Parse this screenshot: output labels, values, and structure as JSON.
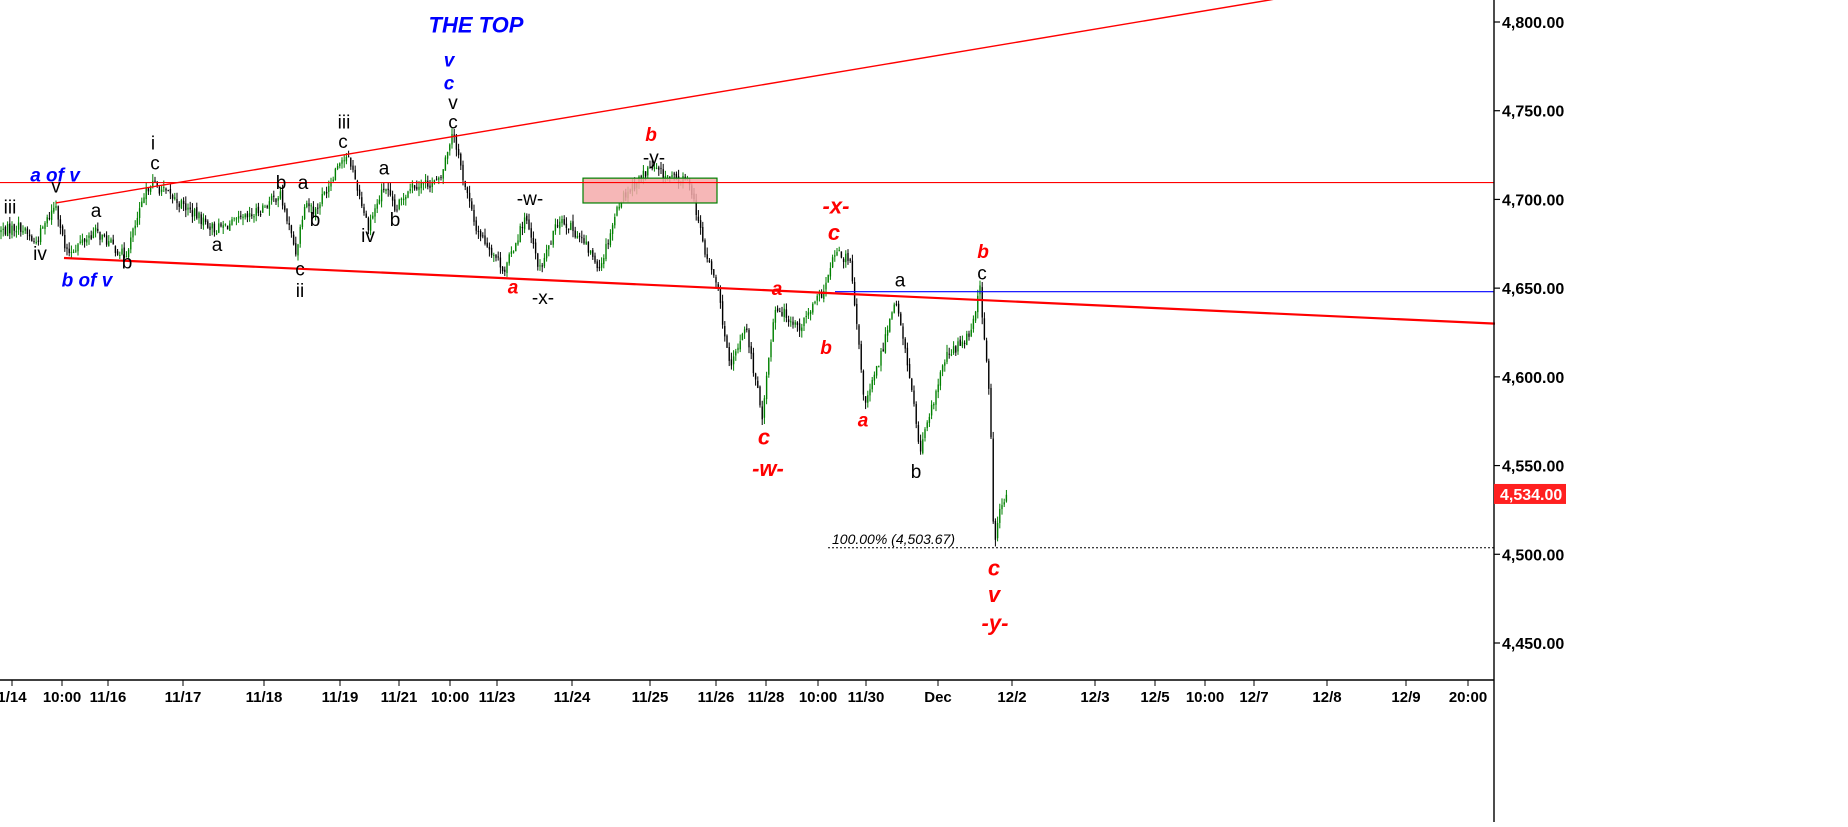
{
  "chart_data": {
    "type": "candlestick",
    "title": "",
    "xlabel": "",
    "ylabel": "",
    "ylim": [
      4430,
      4822
    ],
    "y_ticks": [
      "4,800.00",
      "4,750.00",
      "4,700.00",
      "4,650.00",
      "4,600.00",
      "4,550.00",
      "4,500.00",
      "4,450.00"
    ],
    "y_tick_values": [
      4800,
      4750,
      4700,
      4650,
      4600,
      4550,
      4500,
      4450
    ],
    "x_ticks": [
      "1/14",
      "10:00",
      "11/16",
      "11/17",
      "11/18",
      "11/19",
      "11/21",
      "10:00",
      "11/23",
      "11/24",
      "11/25",
      "11/26",
      "11/28",
      "10:00",
      "11/30",
      "Dec",
      "12/2",
      "12/3",
      "12/5",
      "10:00",
      "12/7",
      "12/8",
      "12/9",
      "20:00"
    ],
    "last_price_label": "4,534.00",
    "last_price": 4534,
    "colors": {
      "up": "#008000",
      "down": "#000000",
      "trend": "#ff0000",
      "blue_line": "#0000ff",
      "box_fill": "#f4aaaa",
      "box_border": "#008000",
      "last_price_bg": "#ff2020"
    },
    "fib_label": "100.00% (4,503.67)",
    "fib_level": 4503.67,
    "horizontal_lines": [
      {
        "name": "red-resistance",
        "y": 4709.5,
        "color": "#ff0000"
      },
      {
        "name": "blue-level",
        "y": 4648,
        "color": "#0000ff"
      }
    ],
    "trendlines": [
      {
        "name": "upper-channel",
        "from": {
          "t": 56,
          "y": 4698
        },
        "to": {
          "t": 1350,
          "y": 4820
        },
        "color": "#ff0000"
      },
      {
        "name": "lower-channel",
        "from": {
          "t": 64,
          "y": 4667
        },
        "to": {
          "t": 1495,
          "y": 4630
        },
        "color": "#ff0000"
      }
    ],
    "resistance_box": {
      "t0": 583,
      "t1": 717,
      "y_top": 4712,
      "y_bottom": 4698
    },
    "path": [
      [
        0,
        4682
      ],
      [
        20,
        4685
      ],
      [
        35,
        4675
      ],
      [
        56,
        4698
      ],
      [
        66,
        4669
      ],
      [
        95,
        4682
      ],
      [
        125,
        4668
      ],
      [
        150,
        4710
      ],
      [
        175,
        4700
      ],
      [
        215,
        4683
      ],
      [
        250,
        4690
      ],
      [
        280,
        4703
      ],
      [
        296,
        4670
      ],
      [
        305,
        4700
      ],
      [
        315,
        4693
      ],
      [
        330,
        4710
      ],
      [
        340,
        4723
      ],
      [
        350,
        4722
      ],
      [
        368,
        4685
      ],
      [
        385,
        4708
      ],
      [
        395,
        4693
      ],
      [
        410,
        4708
      ],
      [
        440,
        4710
      ],
      [
        453,
        4740
      ],
      [
        462,
        4715
      ],
      [
        475,
        4685
      ],
      [
        505,
        4660
      ],
      [
        525,
        4690
      ],
      [
        540,
        4660
      ],
      [
        560,
        4690
      ],
      [
        578,
        4680
      ],
      [
        600,
        4662
      ],
      [
        620,
        4700
      ],
      [
        650,
        4718
      ],
      [
        670,
        4712
      ],
      [
        690,
        4710
      ],
      [
        705,
        4670
      ],
      [
        718,
        4650
      ],
      [
        730,
        4603
      ],
      [
        745,
        4630
      ],
      [
        762,
        4578
      ],
      [
        775,
        4640
      ],
      [
        800,
        4628
      ],
      [
        825,
        4650
      ],
      [
        835,
        4670
      ],
      [
        850,
        4665
      ],
      [
        865,
        4583
      ],
      [
        880,
        4610
      ],
      [
        895,
        4645
      ],
      [
        910,
        4600
      ],
      [
        920,
        4557
      ],
      [
        945,
        4610
      ],
      [
        970,
        4625
      ],
      [
        980,
        4650
      ],
      [
        990,
        4585
      ],
      [
        994,
        4503
      ],
      [
        1000,
        4525
      ],
      [
        1008,
        4534
      ]
    ],
    "annotations": [
      {
        "text": "THE TOP",
        "t": 476,
        "y": 4794,
        "color": "#0000ff",
        "style": "big"
      },
      {
        "text": "v",
        "t": 449,
        "y": 4775,
        "color": "#0000ff",
        "style": "it"
      },
      {
        "text": "c",
        "t": 449,
        "y": 4762,
        "color": "#0000ff",
        "style": "it"
      },
      {
        "text": "v",
        "t": 453,
        "y": 4751,
        "color": "#000000",
        "style": "plain"
      },
      {
        "text": "c",
        "t": 453,
        "y": 4740,
        "color": "#000000",
        "style": "plain"
      },
      {
        "text": "a of v",
        "t": 55,
        "y": 4710,
        "color": "#0000ff",
        "style": "it"
      },
      {
        "text": "v",
        "t": 56,
        "y": 4704,
        "color": "#000000",
        "style": "plain"
      },
      {
        "text": "iii",
        "t": 10,
        "y": 4692,
        "color": "#000000",
        "style": "plain"
      },
      {
        "text": "iv",
        "t": 40,
        "y": 4666,
        "color": "#000000",
        "style": "plain"
      },
      {
        "text": "b of v",
        "t": 87,
        "y": 4651,
        "color": "#0000ff",
        "style": "it"
      },
      {
        "text": "a",
        "t": 96,
        "y": 4690,
        "color": "#000000",
        "style": "plain"
      },
      {
        "text": "b",
        "t": 127,
        "y": 4661,
        "color": "#000000",
        "style": "plain"
      },
      {
        "text": "i",
        "t": 153,
        "y": 4728,
        "color": "#000000",
        "style": "plain"
      },
      {
        "text": "c",
        "t": 155,
        "y": 4717,
        "color": "#000000",
        "style": "plain"
      },
      {
        "text": "a",
        "t": 217,
        "y": 4671,
        "color": "#000000",
        "style": "plain"
      },
      {
        "text": "b",
        "t": 281,
        "y": 4706,
        "color": "#000000",
        "style": "plain"
      },
      {
        "text": "a",
        "t": 303,
        "y": 4706,
        "color": "#000000",
        "style": "plain"
      },
      {
        "text": "b",
        "t": 315,
        "y": 4685,
        "color": "#000000",
        "style": "plain"
      },
      {
        "text": "c",
        "t": 300,
        "y": 4657,
        "color": "#000000",
        "style": "plain"
      },
      {
        "text": "ii",
        "t": 300,
        "y": 4645,
        "color": "#000000",
        "style": "plain"
      },
      {
        "text": "iii",
        "t": 344,
        "y": 4740,
        "color": "#000000",
        "style": "plain"
      },
      {
        "text": "c",
        "t": 343,
        "y": 4729,
        "color": "#000000",
        "style": "plain"
      },
      {
        "text": "iv",
        "t": 368,
        "y": 4676,
        "color": "#000000",
        "style": "plain"
      },
      {
        "text": "a",
        "t": 384,
        "y": 4714,
        "color": "#000000",
        "style": "plain"
      },
      {
        "text": "b",
        "t": 395,
        "y": 4685,
        "color": "#000000",
        "style": "plain"
      },
      {
        "text": "-w-",
        "t": 530,
        "y": 4697,
        "color": "#000000",
        "style": "plain"
      },
      {
        "text": "a",
        "t": 513,
        "y": 4647,
        "color": "#ff0000",
        "style": "it"
      },
      {
        "text": "-x-",
        "t": 543,
        "y": 4641,
        "color": "#000000",
        "style": "plain"
      },
      {
        "text": "b",
        "t": 651,
        "y": 4733,
        "color": "#ff0000",
        "style": "it"
      },
      {
        "text": "-y-",
        "t": 654,
        "y": 4720,
        "color": "#000000",
        "style": "plain"
      },
      {
        "text": "-x-",
        "t": 836,
        "y": 4692,
        "color": "#ff0000",
        "style": "big"
      },
      {
        "text": "c",
        "t": 834,
        "y": 4677,
        "color": "#ff0000",
        "style": "big"
      },
      {
        "text": "a",
        "t": 777,
        "y": 4646,
        "color": "#ff0000",
        "style": "it"
      },
      {
        "text": "b",
        "t": 826,
        "y": 4613,
        "color": "#ff0000",
        "style": "it"
      },
      {
        "text": "c",
        "t": 764,
        "y": 4562,
        "color": "#ff0000",
        "style": "big"
      },
      {
        "text": "-w-",
        "t": 768,
        "y": 4544,
        "color": "#ff0000",
        "style": "big"
      },
      {
        "text": "a",
        "t": 900,
        "y": 4651,
        "color": "#000000",
        "style": "plain"
      },
      {
        "text": "a",
        "t": 863,
        "y": 4572,
        "color": "#ff0000",
        "style": "it"
      },
      {
        "text": "b",
        "t": 916,
        "y": 4543,
        "color": "#000000",
        "style": "plain"
      },
      {
        "text": "b",
        "t": 983,
        "y": 4667,
        "color": "#ff0000",
        "style": "it"
      },
      {
        "text": "c",
        "t": 982,
        "y": 4655,
        "color": "#000000",
        "style": "plain"
      },
      {
        "text": "c",
        "t": 994,
        "y": 4488,
        "color": "#ff0000",
        "style": "big"
      },
      {
        "text": "v",
        "t": 994,
        "y": 4473,
        "color": "#ff0000",
        "style": "big"
      },
      {
        "text": "-y-",
        "t": 995,
        "y": 4457,
        "color": "#ff0000",
        "style": "big"
      }
    ]
  }
}
